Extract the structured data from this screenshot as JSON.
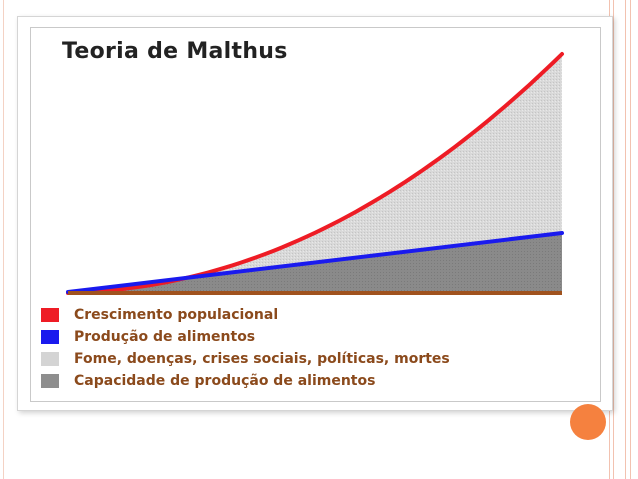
{
  "title": "Teoria de Malthus",
  "legend": [
    {
      "label": "Crescimento populacional",
      "color": "#ee1c25"
    },
    {
      "label": "Produção de alimentos",
      "color": "#1a1aee"
    },
    {
      "label": "Fome, doenças, crises sociais, políticas, mortes",
      "color": "#d4d4d4"
    },
    {
      "label": "Capacidade de produção de alimentos",
      "color": "#8e8e8e"
    }
  ],
  "curves": {
    "population_color": "#ee1c25",
    "food_color": "#1a1aee",
    "baseline_color": "#a0521e",
    "gap_fill": "#d9d9d9",
    "food_fill": "#888888"
  },
  "accent_color": "#f5813f"
}
